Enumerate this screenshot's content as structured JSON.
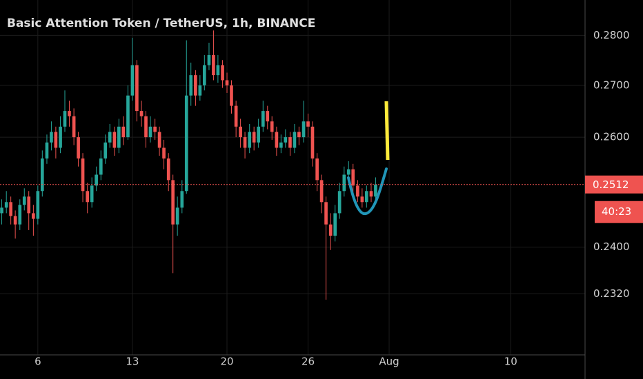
{
  "chart_data": {
    "type": "candlestick",
    "title": "Basic Attention Token / TetherUS, 1h, BINANCE",
    "log_scale": true,
    "grid": true,
    "up_color": "#26a69a",
    "down_color": "#ef5350",
    "x": [
      3.33,
      3.67,
      4,
      4.33,
      4.67,
      5,
      5.33,
      5.67,
      6,
      6.33,
      6.67,
      7,
      7.33,
      7.67,
      8,
      8.33,
      8.67,
      9,
      9.33,
      9.67,
      10,
      10.33,
      10.67,
      11,
      11.33,
      11.67,
      12,
      12.33,
      12.67,
      13,
      13.33,
      13.67,
      14,
      14.33,
      14.67,
      15,
      15.33,
      15.67,
      16,
      16.33,
      16.67,
      17,
      17.33,
      17.67,
      18,
      18.33,
      18.67,
      19,
      19.33,
      19.67,
      20,
      20.33,
      20.67,
      21,
      21.33,
      21.67,
      22,
      22.33,
      22.67,
      23,
      23.33,
      23.67,
      24,
      24.33,
      24.67,
      25,
      25.33,
      25.67,
      26,
      26.33,
      26.67,
      27,
      27.33,
      27.67,
      28,
      28.33,
      28.67,
      29,
      29.33,
      29.67,
      30,
      30.33,
      30.67,
      31
    ],
    "open": [
      0.246,
      0.247,
      0.248,
      0.2455,
      0.244,
      0.2475,
      0.249,
      0.246,
      0.245,
      0.25,
      0.256,
      0.259,
      0.261,
      0.258,
      0.262,
      0.265,
      0.264,
      0.26,
      0.256,
      0.25,
      0.248,
      0.251,
      0.253,
      0.256,
      0.259,
      0.261,
      0.258,
      0.262,
      0.26,
      0.268,
      0.274,
      0.265,
      0.264,
      0.26,
      0.262,
      0.261,
      0.258,
      0.256,
      0.252,
      0.244,
      0.247,
      0.25,
      0.268,
      0.272,
      0.268,
      0.27,
      0.274,
      0.276,
      0.272,
      0.274,
      0.271,
      0.27,
      0.266,
      0.262,
      0.26,
      0.258,
      0.261,
      0.259,
      0.262,
      0.265,
      0.263,
      0.261,
      0.258,
      0.259,
      0.26,
      0.258,
      0.261,
      0.26,
      0.263,
      0.262,
      0.256,
      0.252,
      0.248,
      0.244,
      0.242,
      0.246,
      0.25,
      0.253,
      0.254,
      0.251,
      0.249,
      0.248,
      0.25,
      0.249
    ],
    "high": [
      0.2485,
      0.25,
      0.249,
      0.2465,
      0.2485,
      0.2505,
      0.25,
      0.2475,
      0.251,
      0.2575,
      0.2605,
      0.263,
      0.262,
      0.264,
      0.269,
      0.267,
      0.2655,
      0.261,
      0.257,
      0.2515,
      0.2525,
      0.2545,
      0.2575,
      0.2605,
      0.2625,
      0.262,
      0.2635,
      0.264,
      0.27,
      0.2795,
      0.275,
      0.267,
      0.265,
      0.264,
      0.2635,
      0.262,
      0.2595,
      0.257,
      0.253,
      0.249,
      0.252,
      0.279,
      0.2745,
      0.273,
      0.272,
      0.276,
      0.2785,
      0.281,
      0.276,
      0.275,
      0.2725,
      0.271,
      0.267,
      0.2635,
      0.261,
      0.2625,
      0.262,
      0.2635,
      0.267,
      0.266,
      0.264,
      0.262,
      0.2605,
      0.2615,
      0.261,
      0.2625,
      0.262,
      0.267,
      0.2645,
      0.263,
      0.257,
      0.253,
      0.249,
      0.246,
      0.2475,
      0.2515,
      0.2545,
      0.2555,
      0.255,
      0.252,
      0.2505,
      0.251,
      0.2515,
      0.2525
    ],
    "low": [
      0.244,
      0.246,
      0.244,
      0.2415,
      0.243,
      0.2465,
      0.243,
      0.242,
      0.244,
      0.249,
      0.255,
      0.2575,
      0.256,
      0.257,
      0.261,
      0.262,
      0.2585,
      0.2545,
      0.248,
      0.246,
      0.247,
      0.25,
      0.252,
      0.255,
      0.258,
      0.2565,
      0.257,
      0.2585,
      0.2595,
      0.267,
      0.263,
      0.262,
      0.258,
      0.259,
      0.2595,
      0.2565,
      0.254,
      0.25,
      0.2355,
      0.242,
      0.246,
      0.2495,
      0.266,
      0.266,
      0.267,
      0.269,
      0.273,
      0.271,
      0.2705,
      0.2695,
      0.2685,
      0.2645,
      0.26,
      0.258,
      0.256,
      0.257,
      0.2575,
      0.258,
      0.261,
      0.2615,
      0.2595,
      0.2565,
      0.257,
      0.258,
      0.2565,
      0.257,
      0.2585,
      0.259,
      0.26,
      0.2545,
      0.25,
      0.246,
      0.231,
      0.2395,
      0.241,
      0.245,
      0.249,
      0.252,
      0.2495,
      0.248,
      0.247,
      0.247,
      0.248,
      0.2485
    ],
    "close": [
      0.247,
      0.248,
      0.2455,
      0.244,
      0.2475,
      0.249,
      0.246,
      0.245,
      0.25,
      0.256,
      0.259,
      0.261,
      0.258,
      0.262,
      0.265,
      0.264,
      0.26,
      0.256,
      0.25,
      0.248,
      0.251,
      0.253,
      0.256,
      0.259,
      0.261,
      0.258,
      0.262,
      0.26,
      0.268,
      0.274,
      0.265,
      0.264,
      0.26,
      0.262,
      0.261,
      0.258,
      0.256,
      0.252,
      0.244,
      0.247,
      0.25,
      0.268,
      0.272,
      0.268,
      0.27,
      0.274,
      0.276,
      0.272,
      0.274,
      0.271,
      0.27,
      0.266,
      0.262,
      0.26,
      0.258,
      0.261,
      0.259,
      0.262,
      0.265,
      0.263,
      0.261,
      0.258,
      0.259,
      0.26,
      0.258,
      0.261,
      0.26,
      0.263,
      0.262,
      0.256,
      0.252,
      0.248,
      0.244,
      0.242,
      0.246,
      0.25,
      0.253,
      0.254,
      0.251,
      0.249,
      0.248,
      0.25,
      0.249,
      0.2512
    ],
    "xlim": [
      3.2,
      46.5
    ],
    "xticks": [
      6,
      13,
      20,
      26,
      {
        "value": 32,
        "label": "Aug"
      },
      {
        "value": 41,
        "label": "10"
      }
    ],
    "ylim": [
      0.2219,
      0.2873
    ],
    "yticks": [
      {
        "value": 0.232,
        "label": "0.2320"
      },
      {
        "value": 0.24,
        "label": "0.2400"
      },
      {
        "value": 0.26,
        "label": "0.2600"
      },
      {
        "value": 0.27,
        "label": "0.2700"
      },
      {
        "value": 0.28,
        "label": "0.2800"
      }
    ],
    "last_price": 0.2512,
    "countdown": "40:23"
  }
}
